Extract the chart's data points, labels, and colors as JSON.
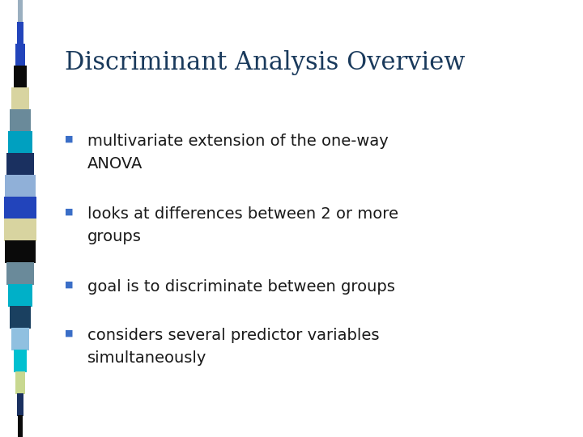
{
  "title": "Discriminant Analysis Overview",
  "title_color": "#1a3a5c",
  "title_fontsize": 22,
  "title_font": "serif",
  "background_color": "#ffffff",
  "bullet_color": "#3a6ec7",
  "bullet_size": 8,
  "text_color": "#1a1a1a",
  "text_fontsize": 14,
  "bullets": [
    [
      "multivariate extension of the one-way\nANOVA"
    ],
    [
      "looks at differences between 2 or more\ngroups"
    ],
    [
      "goal is to discriminate between groups"
    ],
    [
      "considers several predictor variables\nsimultaneously"
    ]
  ],
  "stripe_colors": [
    "#9aafc0",
    "#2244bb",
    "#2244bb",
    "#0a0a0a",
    "#d8d4a0",
    "#6a8a9a",
    "#00a0c0",
    "#1a3060",
    "#90b0d8",
    "#2244bb",
    "#d8d4a0",
    "#0a0a0a",
    "#6a8a9a",
    "#00b0c8",
    "#1a4060",
    "#90c0e0",
    "#00c0d0",
    "#c8d890",
    "#1a3060",
    "#0a0a0a"
  ],
  "fig_width": 7.2,
  "fig_height": 5.4,
  "dpi": 100
}
